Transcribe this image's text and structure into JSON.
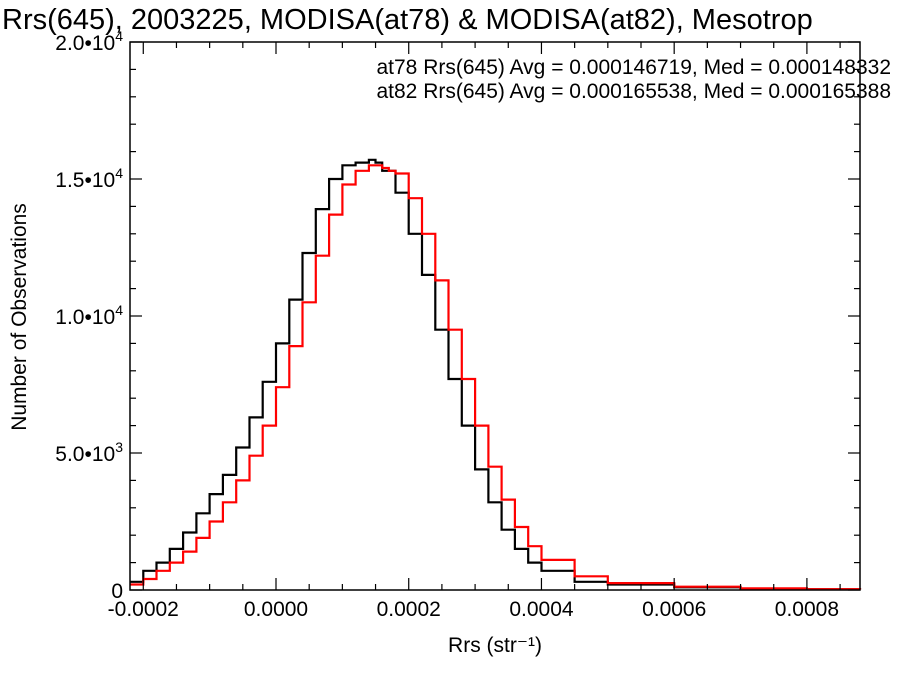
{
  "chart_data": {
    "type": "line",
    "title": "Rrs(645), 2003225, MODISA(at78) & MODISA(at82), Mesotrop",
    "xlabel": "Rrs (str⁻¹)",
    "ylabel": "Number of Observations",
    "xlim": [
      -0.00022,
      0.00088
    ],
    "ylim": [
      0,
      20000
    ],
    "x_ticks": [
      -0.0002,
      0.0,
      0.0002,
      0.0004,
      0.0006,
      0.0008
    ],
    "x_tick_labels": [
      "-0.0002",
      "0.0000",
      "0.0002",
      "0.0004",
      "0.0006",
      "0.0008"
    ],
    "y_ticks": [
      0,
      5000,
      10000,
      15000,
      20000
    ],
    "y_tick_labels": [
      {
        "mant": "0",
        "exp": ""
      },
      {
        "mant": "5.0•10",
        "exp": "3"
      },
      {
        "mant": "1.0•10",
        "exp": "4"
      },
      {
        "mant": "1.5•10",
        "exp": "4"
      },
      {
        "mant": "2.0•10",
        "exp": "4"
      }
    ],
    "x_minor_per_major": 4,
    "y_minor_per_major": 5,
    "legend_position": "top-right",
    "series": [
      {
        "name": "at78",
        "color": "#000000",
        "label": "at78 Rrs(645) Avg = 0.000146719, Med = 0.000148332",
        "x": [
          -0.00022,
          -0.0002,
          -0.00018,
          -0.00016,
          -0.00014,
          -0.00012,
          -0.0001,
          -8e-05,
          -6e-05,
          -4e-05,
          -2e-05,
          0.0,
          2e-05,
          4e-05,
          6e-05,
          8e-05,
          0.0001,
          0.00012,
          0.00014,
          0.00015,
          0.00016,
          0.00018,
          0.0002,
          0.00022,
          0.00024,
          0.00026,
          0.00028,
          0.0003,
          0.00032,
          0.00034,
          0.00036,
          0.00038,
          0.0004,
          0.00045,
          0.0005,
          0.0006,
          0.0007,
          0.0008,
          0.00088
        ],
        "y": [
          300,
          700,
          1000,
          1500,
          2100,
          2800,
          3500,
          4200,
          5200,
          6300,
          7600,
          9000,
          10600,
          12300,
          13900,
          15000,
          15500,
          15600,
          15700,
          15600,
          15300,
          14500,
          13000,
          11500,
          9500,
          7700,
          6000,
          4400,
          3200,
          2200,
          1500,
          1000,
          700,
          300,
          200,
          100,
          50,
          30,
          20
        ]
      },
      {
        "name": "at82",
        "color": "#ff0000",
        "label": "at82 Rrs(645) Avg = 0.000165538, Med = 0.000165388",
        "x": [
          -0.00022,
          -0.0002,
          -0.00018,
          -0.00016,
          -0.00014,
          -0.00012,
          -0.0001,
          -8e-05,
          -6e-05,
          -4e-05,
          -2e-05,
          0.0,
          2e-05,
          4e-05,
          6e-05,
          8e-05,
          0.0001,
          0.00012,
          0.00014,
          0.00016,
          0.00017,
          0.00018,
          0.0002,
          0.00022,
          0.00024,
          0.00026,
          0.00028,
          0.0003,
          0.00032,
          0.00034,
          0.00036,
          0.00038,
          0.0004,
          0.00045,
          0.0005,
          0.0006,
          0.0007,
          0.0008,
          0.00088
        ],
        "y": [
          200,
          400,
          700,
          1000,
          1400,
          1900,
          2500,
          3200,
          4000,
          4900,
          6000,
          7400,
          8900,
          10500,
          12200,
          13700,
          14800,
          15300,
          15500,
          15400,
          15300,
          15200,
          14300,
          13000,
          11300,
          9500,
          7700,
          6000,
          4500,
          3300,
          2300,
          1600,
          1100,
          500,
          250,
          120,
          60,
          30,
          15
        ]
      }
    ]
  }
}
